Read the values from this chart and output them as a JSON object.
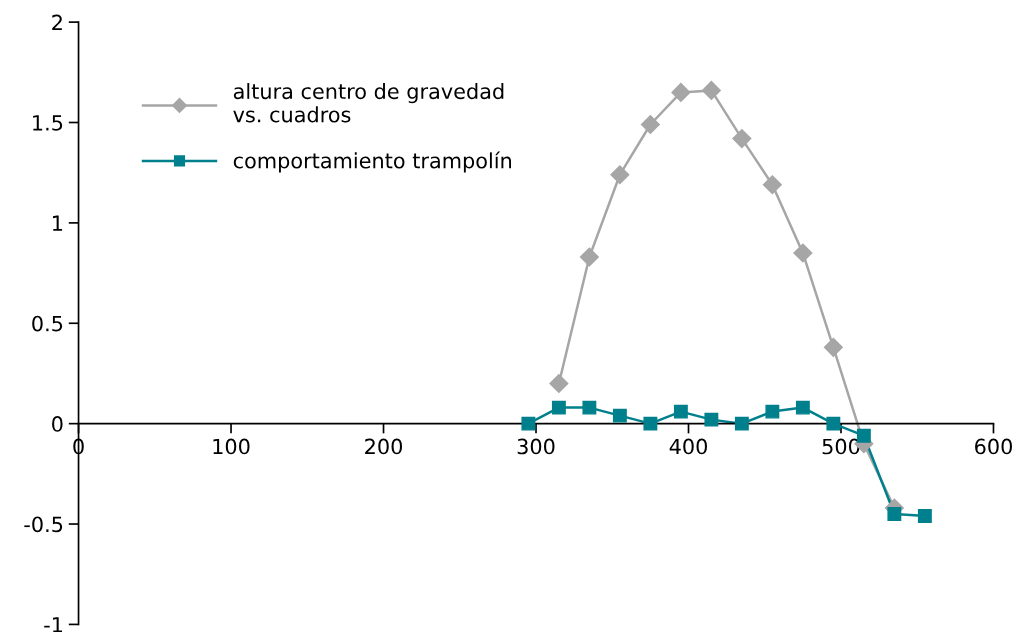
{
  "chart_data": {
    "type": "line",
    "xlim": [
      0,
      600
    ],
    "xticks": [
      0,
      100,
      200,
      300,
      400,
      500,
      600
    ],
    "ylim": [
      -1,
      2
    ],
    "yticks": [
      -1,
      -0.5,
      0,
      0.5,
      1,
      1.5,
      2
    ],
    "grid": false,
    "legend": "top left",
    "series": [
      {
        "name": "altura centro de gravedad\nvs. cuadros",
        "color": "#a6a6a6",
        "marker": "diamond",
        "x": [
          315,
          335,
          355,
          375,
          395,
          415,
          435,
          455,
          475,
          495,
          515,
          535
        ],
        "values": [
          0.2,
          0.83,
          1.24,
          1.49,
          1.65,
          1.66,
          1.42,
          1.19,
          0.85,
          0.38,
          -0.1,
          -0.42
        ]
      },
      {
        "name": "comportamiento trampolín",
        "color": "#00808c",
        "marker": "square",
        "x": [
          295,
          315,
          335,
          355,
          375,
          395,
          415,
          435,
          455,
          475,
          495,
          515,
          535,
          555
        ],
        "values": [
          0,
          0.08,
          0.08,
          0.04,
          0,
          0.06,
          0.02,
          0,
          0.06,
          0.08,
          0,
          -0.06,
          -0.45,
          -0.46
        ]
      }
    ]
  }
}
